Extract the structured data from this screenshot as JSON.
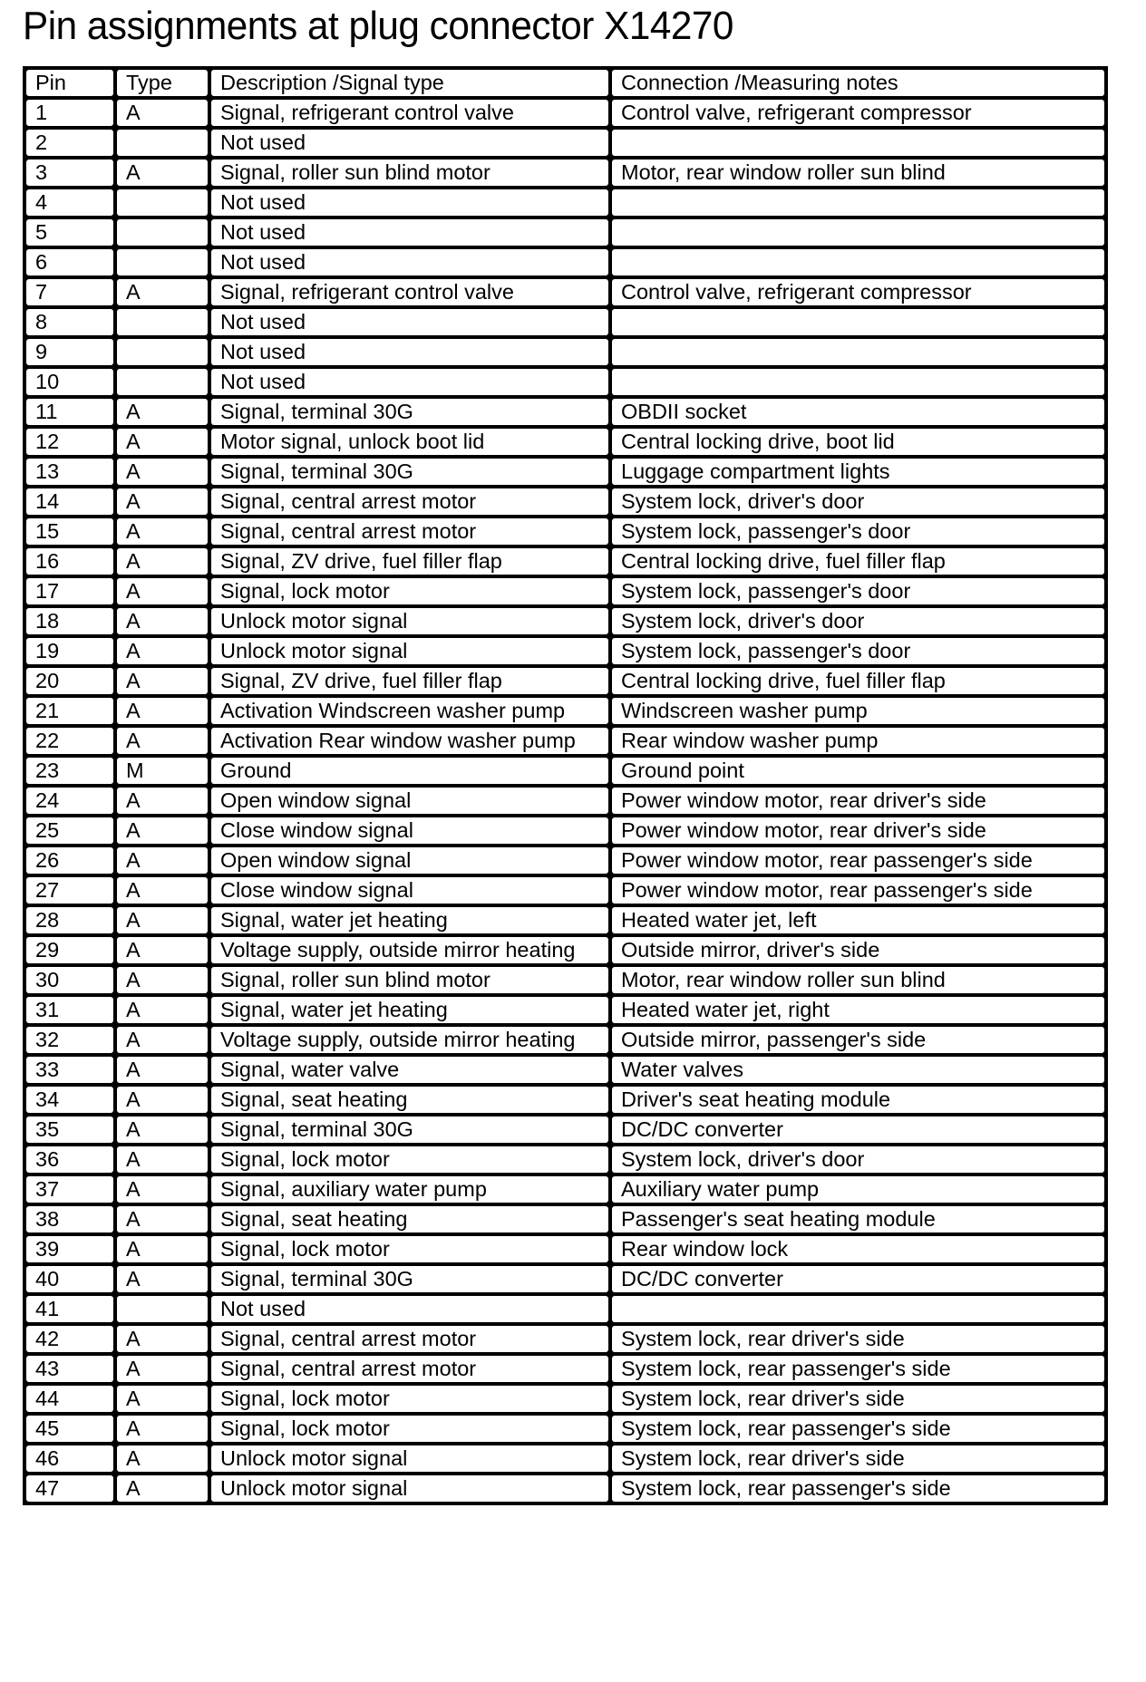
{
  "title": "Pin assignments at plug connector X14270",
  "table": {
    "headers": [
      "Pin",
      "Type",
      "Description /Signal type",
      "Connection /Measuring notes"
    ],
    "rows": [
      [
        "1",
        "A",
        "Signal, refrigerant control valve",
        "Control valve, refrigerant compressor"
      ],
      [
        "2",
        "",
        "Not used",
        ""
      ],
      [
        "3",
        "A",
        "Signal, roller sun blind motor",
        "Motor, rear window roller sun blind"
      ],
      [
        "4",
        "",
        "Not used",
        ""
      ],
      [
        "5",
        "",
        "Not used",
        ""
      ],
      [
        "6",
        "",
        "Not used",
        ""
      ],
      [
        "7",
        "A",
        "Signal, refrigerant control valve",
        "Control valve, refrigerant compressor"
      ],
      [
        "8",
        "",
        "Not used",
        ""
      ],
      [
        "9",
        "",
        "Not used",
        ""
      ],
      [
        "10",
        "",
        "Not used",
        ""
      ],
      [
        "11",
        "A",
        "Signal, terminal 30G",
        "OBDII socket"
      ],
      [
        "12",
        "A",
        "Motor signal, unlock boot lid",
        "Central locking drive, boot lid"
      ],
      [
        "13",
        "A",
        "Signal, terminal 30G",
        "Luggage compartment lights"
      ],
      [
        "14",
        "A",
        "Signal, central arrest motor",
        "System lock, driver's door"
      ],
      [
        "15",
        "A",
        "Signal, central arrest motor",
        "System lock, passenger's door"
      ],
      [
        "16",
        "A",
        "Signal, ZV drive, fuel filler flap",
        "Central locking drive, fuel filler flap"
      ],
      [
        "17",
        "A",
        "Signal, lock motor",
        "System lock, passenger's door"
      ],
      [
        "18",
        "A",
        "Unlock motor signal",
        "System lock, driver's door"
      ],
      [
        "19",
        "A",
        "Unlock motor signal",
        "System lock, passenger's door"
      ],
      [
        "20",
        "A",
        "Signal, ZV drive, fuel filler flap",
        "Central locking drive, fuel filler flap"
      ],
      [
        "21",
        "A",
        "Activation Windscreen washer pump",
        "Windscreen washer pump"
      ],
      [
        "22",
        "A",
        "Activation Rear window washer pump",
        "Rear window washer pump"
      ],
      [
        "23",
        "M",
        "Ground",
        "Ground point"
      ],
      [
        "24",
        "A",
        "Open window signal",
        "Power window motor, rear driver's side"
      ],
      [
        "25",
        "A",
        "Close window signal",
        "Power window motor, rear driver's side"
      ],
      [
        "26",
        "A",
        "Open window signal",
        "Power window motor, rear passenger's side"
      ],
      [
        "27",
        "A",
        "Close window signal",
        "Power window motor, rear passenger's side"
      ],
      [
        "28",
        "A",
        "Signal, water jet heating",
        "Heated water jet, left"
      ],
      [
        "29",
        "A",
        "Voltage supply, outside mirror heating",
        "Outside mirror, driver's side"
      ],
      [
        "30",
        "A",
        "Signal, roller sun blind motor",
        "Motor, rear window roller sun blind"
      ],
      [
        "31",
        "A",
        "Signal, water jet heating",
        "Heated water jet, right"
      ],
      [
        "32",
        "A",
        "Voltage supply, outside mirror heating",
        "Outside mirror, passenger's side"
      ],
      [
        "33",
        "A",
        "Signal, water valve",
        "Water valves"
      ],
      [
        "34",
        "A",
        "Signal, seat heating",
        "Driver's seat heating module"
      ],
      [
        "35",
        "A",
        "Signal, terminal 30G",
        "DC/DC converter"
      ],
      [
        "36",
        "A",
        "Signal, lock motor",
        "System lock, driver's door"
      ],
      [
        "37",
        "A",
        "Signal, auxiliary water pump",
        "Auxiliary water pump"
      ],
      [
        "38",
        "A",
        "Signal, seat heating",
        "Passenger's seat heating module"
      ],
      [
        "39",
        "A",
        "Signal, lock motor",
        "Rear window lock"
      ],
      [
        "40",
        "A",
        "Signal, terminal 30G",
        "DC/DC converter"
      ],
      [
        "41",
        "",
        "Not used",
        ""
      ],
      [
        "42",
        "A",
        "Signal, central arrest motor",
        "System lock, rear driver's side"
      ],
      [
        "43",
        "A",
        "Signal, central arrest motor",
        "System lock, rear passenger's side"
      ],
      [
        "44",
        "A",
        "Signal, lock motor",
        "System lock, rear driver's side"
      ],
      [
        "45",
        "A",
        "Signal, lock motor",
        "System lock, rear passenger's side"
      ],
      [
        "46",
        "A",
        "Unlock motor signal",
        "System lock, rear driver's side"
      ],
      [
        "47",
        "A",
        "Unlock motor signal",
        "System lock, rear passenger's side"
      ]
    ]
  }
}
